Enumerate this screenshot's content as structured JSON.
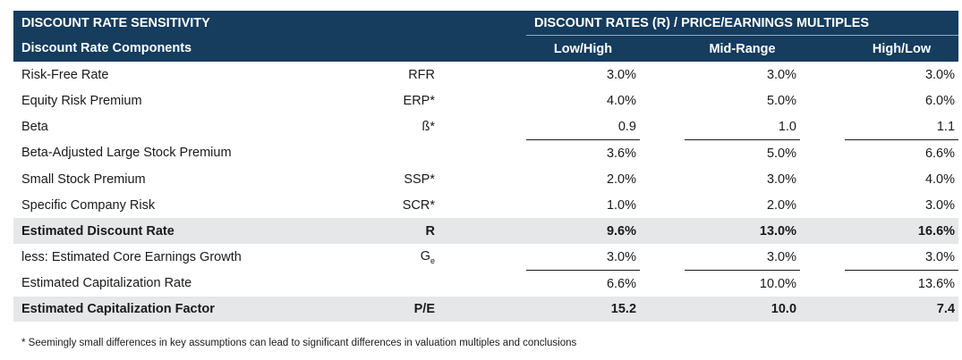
{
  "header": {
    "title": "DISCOUNT RATE SENSITIVITY",
    "rates_title": "DISCOUNT RATES (R) / PRICE/EARNINGS MULTIPLES",
    "components_label": "Discount Rate Components",
    "col_low": "Low/High",
    "col_mid": "Mid-Range",
    "col_high": "High/Low"
  },
  "rows": [
    {
      "label": "Risk-Free Rate",
      "abbr": "RFR",
      "low": "3.0%",
      "mid": "3.0%",
      "high": "3.0%"
    },
    {
      "label": "Equity Risk Premium",
      "abbr": "ERP*",
      "low": "4.0%",
      "mid": "5.0%",
      "high": "6.0%"
    },
    {
      "label": "Beta",
      "abbr": "ß*",
      "low": "0.9",
      "mid": "1.0",
      "high": "1.1"
    },
    {
      "label": "Beta-Adjusted Large Stock Premium",
      "abbr": "",
      "low": "3.6%",
      "mid": "5.0%",
      "high": "6.6%"
    },
    {
      "label": "Small Stock Premium",
      "abbr": "SSP*",
      "low": "2.0%",
      "mid": "3.0%",
      "high": "4.0%"
    },
    {
      "label": "Specific Company Risk",
      "abbr": "SCR*",
      "low": "1.0%",
      "mid": "2.0%",
      "high": "3.0%"
    },
    {
      "label": "Estimated Discount Rate",
      "abbr": "R",
      "low": "9.6%",
      "mid": "13.0%",
      "high": "16.6%"
    },
    {
      "label": "less: Estimated Core Earnings Growth",
      "abbr": "G",
      "abbr_sub": "e",
      "low": "3.0%",
      "mid": "3.0%",
      "high": "3.0%"
    },
    {
      "label": "Estimated Capitalization Rate",
      "abbr": "",
      "low": "6.6%",
      "mid": "10.0%",
      "high": "13.6%"
    },
    {
      "label": "Estimated Capitalization Factor",
      "abbr": "P/E",
      "low": "15.2",
      "mid": "10.0",
      "high": "7.4"
    }
  ],
  "footnote": "* Seemingly small differences in key assumptions can lead to significant differences in valuation multiples and conclusions",
  "colors": {
    "header_bg": "#163c5e",
    "highlight_bg": "#e6e7e9"
  }
}
